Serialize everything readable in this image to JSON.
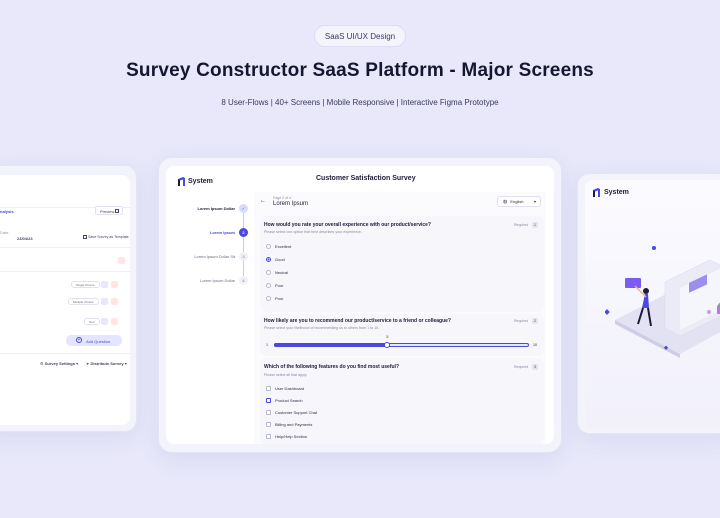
{
  "header": {
    "pill": "SaaS UI/UX Design",
    "title": "Survey Constructor SaaS Platform - Major Screens",
    "subtitle": "8 User-Flows | 40+ Screens | Mobile Responsive | Interactive Figma Prototype"
  },
  "left_screen": {
    "tab_label": "nalysis",
    "preview_label": "Preview",
    "meta_label": "Date",
    "meta_value": "23/04/23",
    "save_template": "Save Survey as Template",
    "question_tags": [
      "Single Choice",
      "Multiple Choice",
      "Text"
    ],
    "add_question": "Add Question",
    "survey_settings": "Survey Settings",
    "distribute_survey": "Distribute Survey"
  },
  "center_screen": {
    "app_name": "System",
    "survey_title": "Customer Satisfaction Survey",
    "steps": [
      {
        "label": "Lorem Ipsum Dollar",
        "num": "✓",
        "state": "done"
      },
      {
        "label": "Lorem Ipsum",
        "num": "2",
        "state": "active"
      },
      {
        "label": "Lorem Ipsum Dollar Sit",
        "num": "3",
        "state": "todo"
      },
      {
        "label": "Lorem Ipsum Dollar",
        "num": "4",
        "state": "todo"
      }
    ],
    "page_counter": "Page 2 of 4",
    "page_title": "Lorem Ipsum",
    "language": "English",
    "q1": {
      "text": "How would you rate your overall experience with our product/service?",
      "hint": "Please select one option that best describes your experience.",
      "required": "Required",
      "badge": "1",
      "options": [
        "Excellent",
        "Good",
        "Neutral",
        "Poor",
        "Poor"
      ],
      "selected": 1
    },
    "q2": {
      "text": "How likely are you to recommend our product/service to a friend or colleague?",
      "hint": "Please select your likelihood of recommending us to others from 1 to 10.",
      "required": "Required",
      "badge": "2",
      "min": "1",
      "max": "10",
      "value": 5,
      "value_label": "5"
    },
    "q3": {
      "text": "Which of the following features do you find most useful?",
      "hint": "Please select all that apply.",
      "required": "Required",
      "badge": "3",
      "options": [
        "User Dashboard",
        "Product Search",
        "Customer Support Chat",
        "Billing and Payments",
        "Help/Help Section"
      ],
      "checked": [
        1
      ]
    }
  },
  "right_screen": {
    "app_name": "System"
  },
  "colors": {
    "accent": "#4a48e0",
    "background": "#e8e8fa"
  }
}
